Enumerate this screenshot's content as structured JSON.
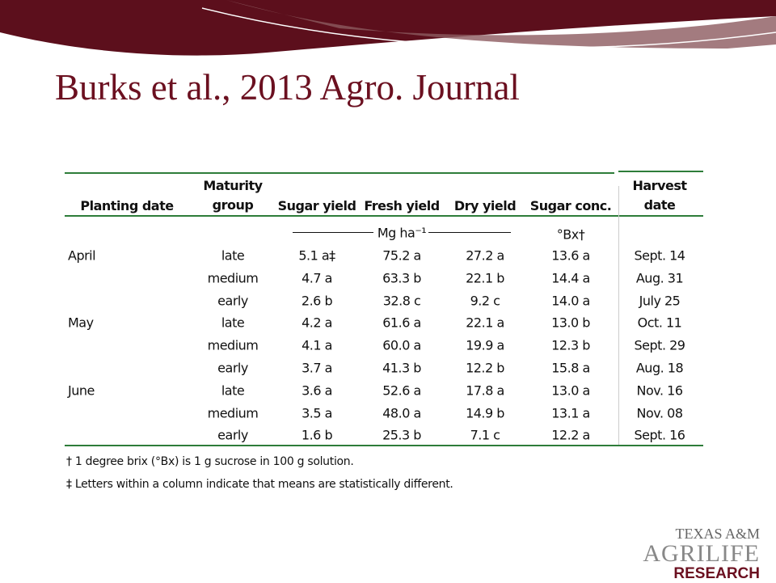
{
  "header": {
    "title": "Burks et al., 2013 Agro. Journal"
  },
  "table": {
    "columns": [
      "Planting date",
      "Maturity group",
      "Sugar yield",
      "Fresh yield",
      "Dry yield",
      "Sugar conc.",
      "Harvest date"
    ],
    "units": {
      "yield": "Mg ha⁻¹",
      "concentration": "°Bx†"
    },
    "groups": [
      {
        "planting_date": "April",
        "rows": [
          [
            "late",
            "5.1 a‡",
            "75.2 a",
            "27.2 a",
            "13.6 a",
            "Sept. 14"
          ],
          [
            "medium",
            "4.7 a",
            "63.3 b",
            "22.1 b",
            "14.4 a",
            "Aug. 31"
          ],
          [
            "early",
            "2.6 b",
            "32.8 c",
            "9.2 c",
            "14.0 a",
            "July 25"
          ]
        ]
      },
      {
        "planting_date": "May",
        "rows": [
          [
            "late",
            "4.2 a",
            "61.6 a",
            "22.1 a",
            "13.0 b",
            "Oct. 11"
          ],
          [
            "medium",
            "4.1 a",
            "60.0 a",
            "19.9 a",
            "12.3 b",
            "Sept. 29"
          ],
          [
            "early",
            "3.7 a",
            "41.3 b",
            "12.2 b",
            "15.8 a",
            "Aug. 18"
          ]
        ]
      },
      {
        "planting_date": "June",
        "rows": [
          [
            "late",
            "3.6 a",
            "52.6 a",
            "17.8 a",
            "13.0 a",
            "Nov. 16"
          ],
          [
            "medium",
            "3.5 a",
            "48.0 a",
            "14.9 b",
            "13.1 a",
            "Nov. 08"
          ],
          [
            "early",
            "1.6 b",
            "25.3 b",
            "7.1 c",
            "12.2 a",
            "Sept. 16"
          ]
        ]
      }
    ],
    "footnotes": [
      "† 1 degree brix (°Bx) is 1 g sucrose in 100 g solution.",
      "‡ Letters within a column indicate that means are statistically different."
    ]
  },
  "logo": {
    "line1": "TEXAS A&M",
    "line2": "AGRILIFE",
    "line3": "RESEARCH"
  }
}
